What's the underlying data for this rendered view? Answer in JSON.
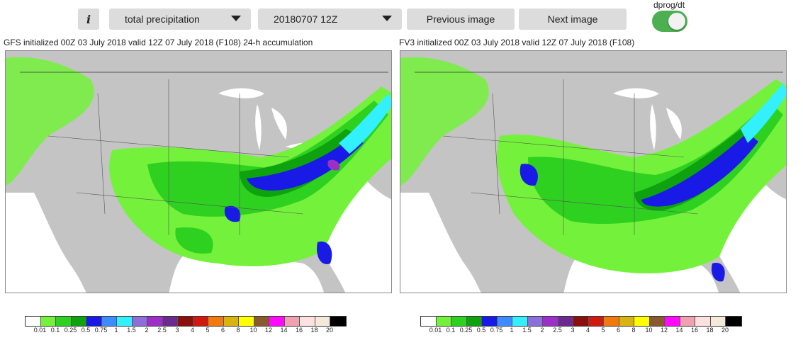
{
  "toolbar": {
    "info_label": "i",
    "field_select": "total precipitation",
    "time_select": "20180707 12Z",
    "prev_label": "Previous image",
    "next_label": "Next image",
    "toggle_label": "dprog/dt",
    "toggle_on": true
  },
  "panels": [
    {
      "title": "GFS initialized 00Z 03 July 2018 valid 12Z 07 July 2018 (F108) 24-h accumulation"
    },
    {
      "title": "FV3 initialized 00Z 03 July 2018 valid 12Z 07 July 2018 (F108)"
    }
  ],
  "colorbar": {
    "colors": [
      "#ffffff",
      "#74f23b",
      "#2ed11f",
      "#0fa20f",
      "#1a1ae6",
      "#3d8cff",
      "#33f0ff",
      "#8c6fd9",
      "#9c2fc7",
      "#6a2a8f",
      "#8a0f0f",
      "#d11a0f",
      "#f07a0f",
      "#d9b310",
      "#ffff00",
      "#8a5a2e",
      "#ff0aff",
      "#f0a0b0",
      "#fde0e0",
      "#f5ead9",
      "#000000"
    ],
    "ticks": [
      "0.01",
      "0.1",
      "0.25",
      "0.5",
      "0.75",
      "1",
      "1.5",
      "2",
      "2.5",
      "3",
      "4",
      "5",
      "6",
      "8",
      "10",
      "12",
      "14",
      "16",
      "18",
      "20"
    ]
  },
  "map_colors": {
    "land": "#c4c4c4",
    "water": "#ffffff",
    "light_green": "#74f23b",
    "green": "#2ed11f",
    "dark_green": "#0fa20f",
    "blue": "#1a1ae6",
    "light_blue": "#3d8cff",
    "cyan": "#33f0ff",
    "purple": "#9c2fc7"
  }
}
